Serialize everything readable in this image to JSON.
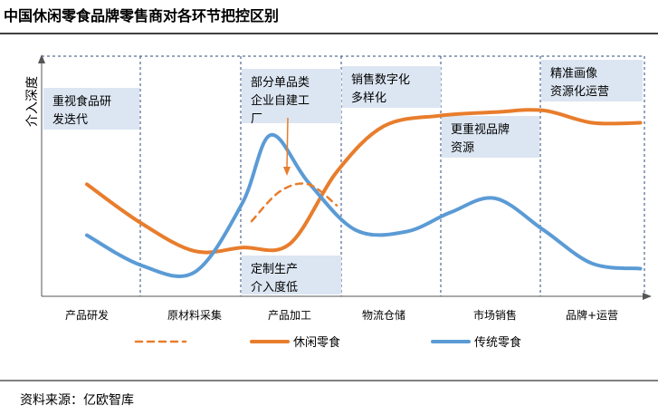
{
  "title": "中国休闲零食品牌零售商对各环节把控区别",
  "source": "资料来源：亿欧智库",
  "chart_data": {
    "type": "line",
    "ylabel": "介入深度",
    "categories": [
      "产品研发",
      "原材料采集",
      "产品加工",
      "物流仓储",
      "市场销售",
      "品牌+运营"
    ],
    "annotations": [
      {
        "lines": [
          "重视食品研",
          "发迭代"
        ]
      },
      {
        "lines": [
          "部分单品类",
          "企业自建工",
          "厂"
        ]
      },
      {
        "lines": [
          "定制生产",
          "介入度低"
        ]
      },
      {
        "lines": [
          "销售数字化",
          "多样化"
        ]
      },
      {
        "lines": [
          "更重视品牌",
          "资源"
        ]
      },
      {
        "lines": [
          "精准画像",
          "资源化运营"
        ]
      }
    ],
    "series": [
      {
        "name": "休闲零食",
        "color": "#E87D2C",
        "x": [
          0,
          0.5,
          1,
          1.5,
          2,
          2.5,
          3,
          3.5,
          4,
          4.5,
          5,
          5.5
        ],
        "values": [
          5.6,
          3.4,
          1.8,
          2.0,
          2.2,
          6.3,
          8.9,
          9.5,
          9.7,
          9.8,
          9.1,
          9.1
        ]
      },
      {
        "name": "传统零食",
        "color": "#5B9BD5",
        "x": [
          0,
          0.5,
          1,
          1.5,
          1.8,
          2.2,
          2.7,
          3.2,
          3.6,
          4,
          4.5,
          5,
          5.5
        ],
        "values": [
          2.7,
          1.0,
          0.6,
          4.5,
          8.4,
          5.7,
          3.0,
          2.9,
          4.0,
          4.8,
          3.0,
          1.1,
          0.8
        ]
      },
      {
        "name": "",
        "color": "#E87D2C",
        "dashed": true,
        "x": [
          1.6,
          1.9,
          2.2,
          2.5
        ],
        "values": [
          3.5,
          5.2,
          5.6,
          4.4
        ]
      }
    ],
    "legend": [
      {
        "name": "",
        "color": "#E87D2C",
        "dashed": true
      },
      {
        "name": "休闲零食",
        "color": "#E87D2C",
        "dashed": false
      },
      {
        "name": "传统零食",
        "color": "#5B9BD5",
        "dashed": false
      }
    ],
    "legend_position": "bottom",
    "ylim": [
      0,
      10
    ],
    "colors": {
      "annotation_box": "#DCE6F2",
      "divider": "#2E4A7D"
    }
  }
}
